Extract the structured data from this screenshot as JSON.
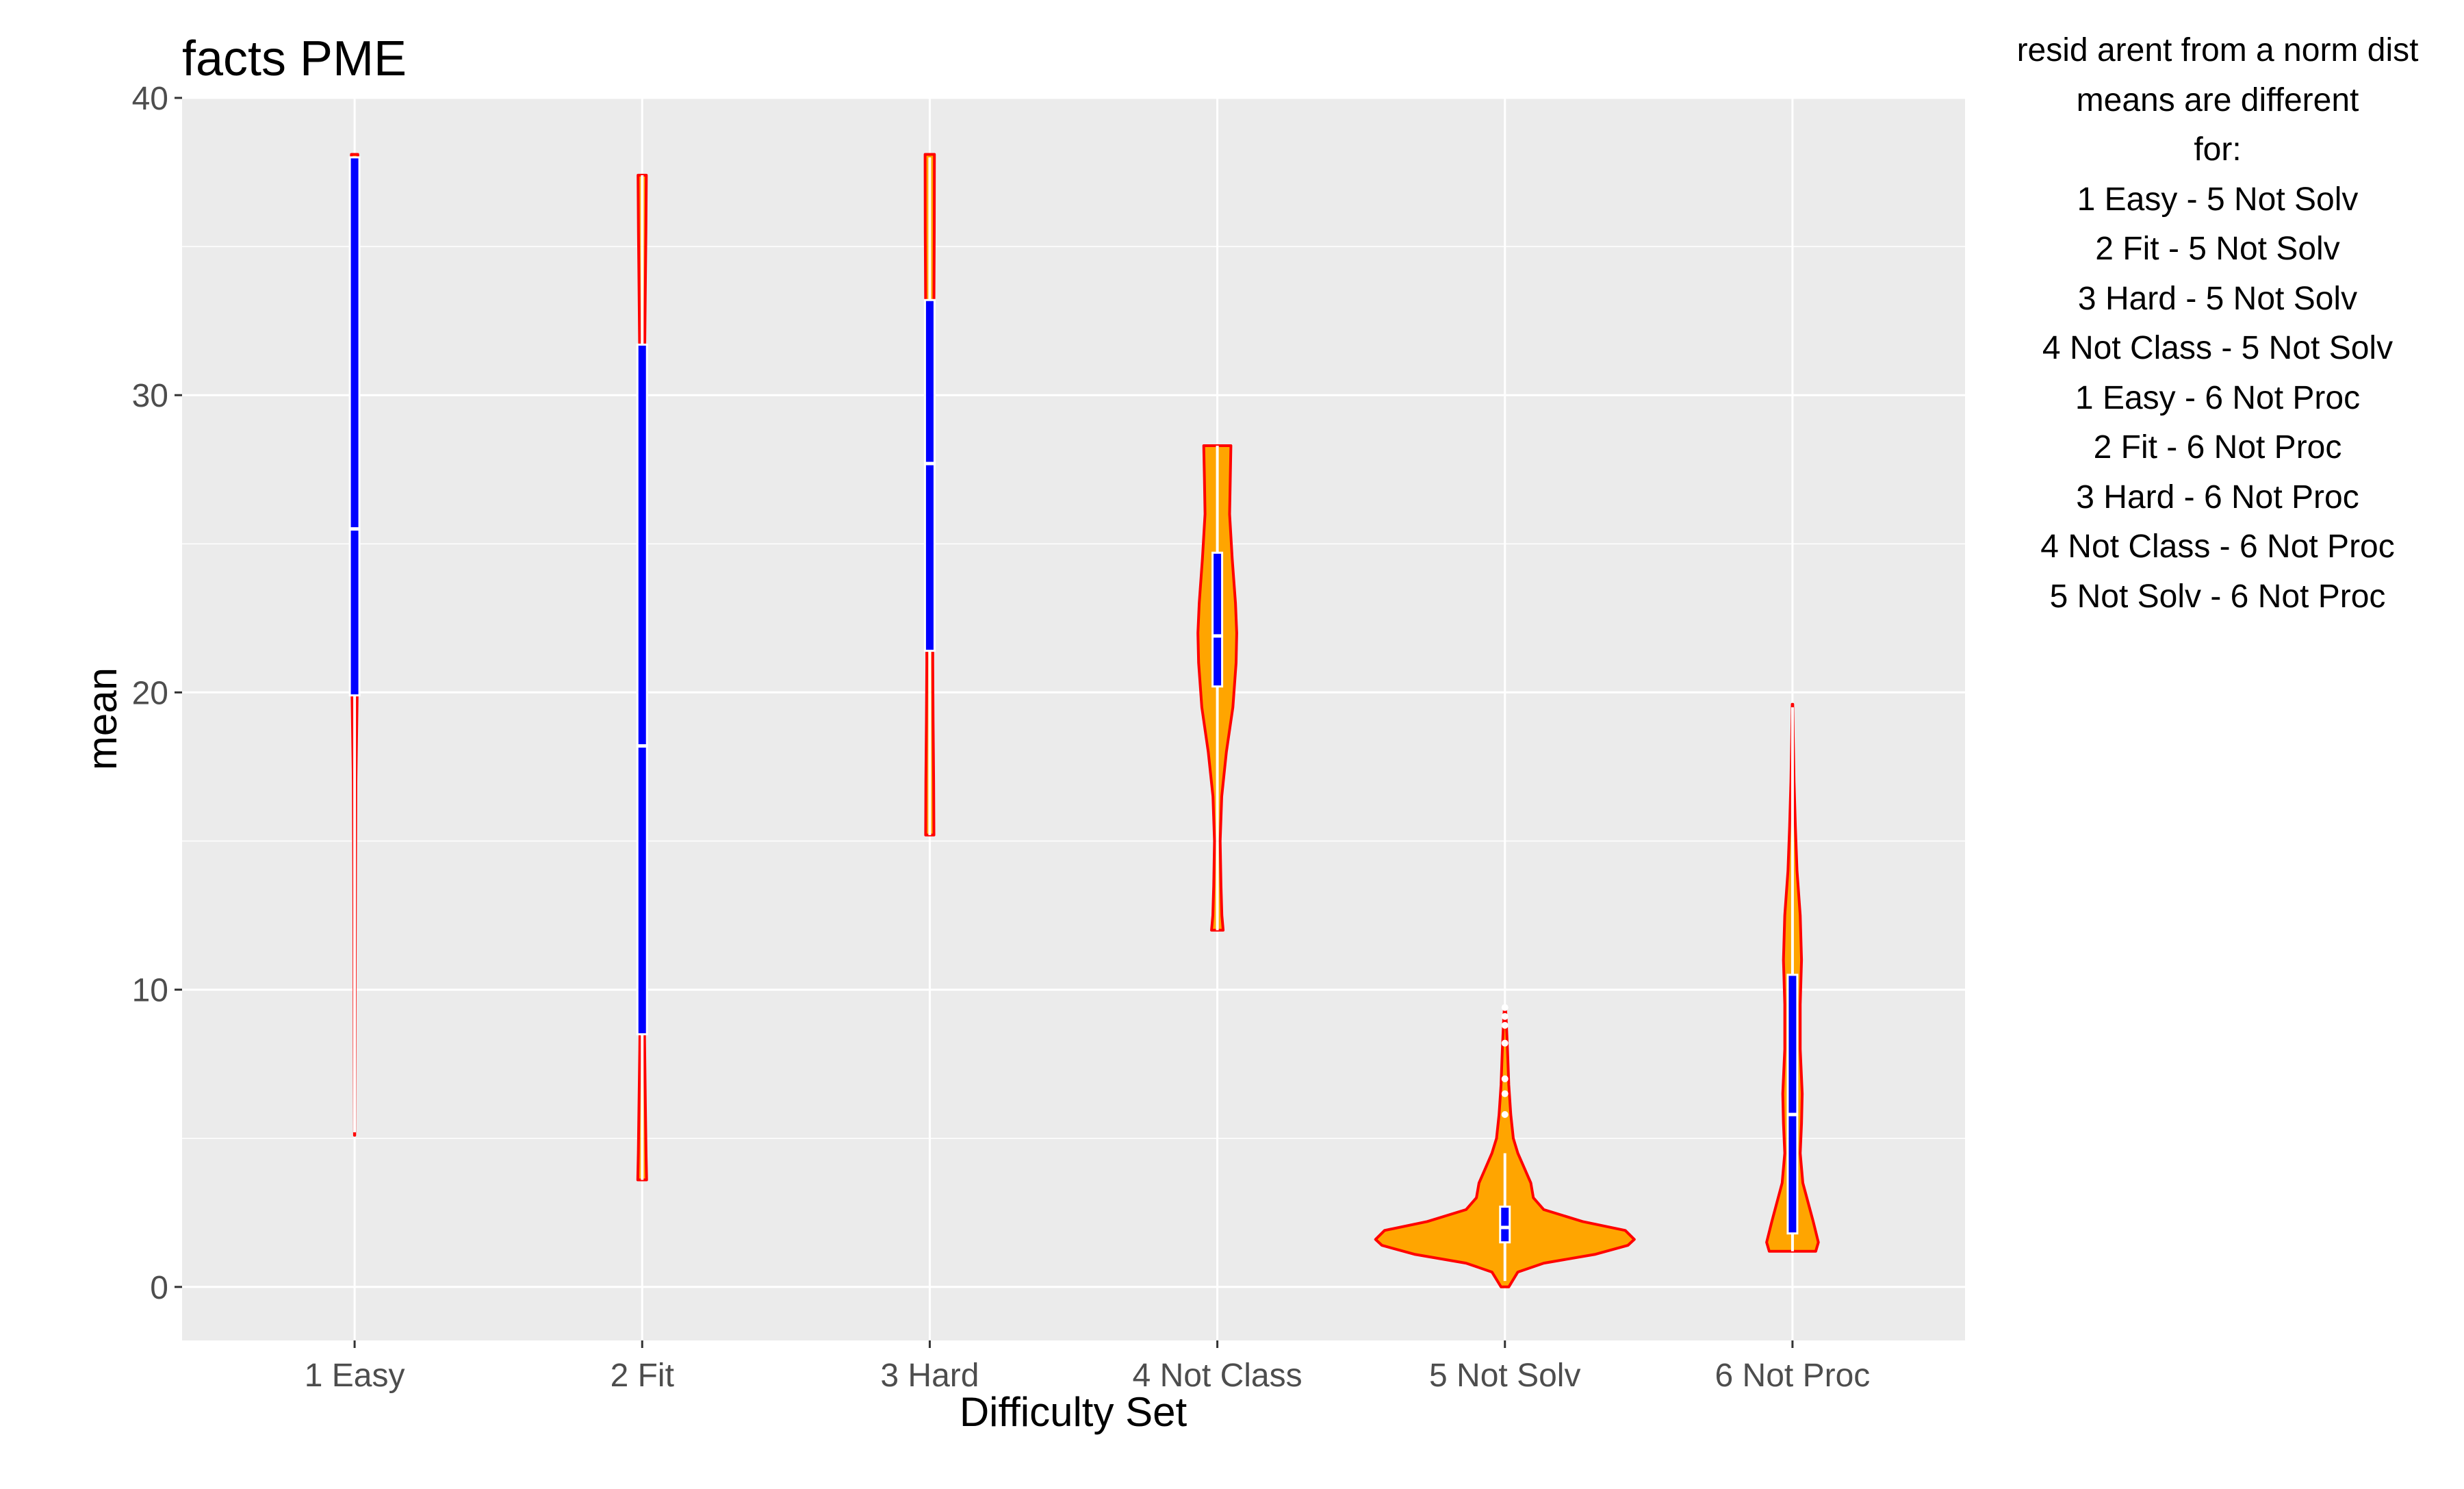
{
  "chart_data": {
    "type": "violin",
    "title": "facts PME",
    "xlabel": "Difficulty Set",
    "ylabel": "mean",
    "ylim": [
      -1.8,
      40
    ],
    "y_ticks": [
      0,
      10,
      20,
      30,
      40
    ],
    "grid": true,
    "colors": {
      "panel": "#EBEBEB",
      "grid": "#FFFFFF",
      "violin_fill": "#FFA500",
      "violin_outline": "#FF0000",
      "box_fill": "#0000FF",
      "box_outline": "#FFFFFF",
      "axis_text": "#4D4D4D"
    },
    "categories": [
      "1 Easy",
      "2 Fit",
      "3 Hard",
      "4 Not Class",
      "5 Not Solv",
      "6 Not Proc"
    ],
    "groups": [
      {
        "category": "1 Easy",
        "box": {
          "q1": 19.9,
          "median": 25.5,
          "q3": 38.0,
          "whisker_low": 5.2,
          "whisker_high": 38.0
        },
        "outliers": [],
        "density": [
          [
            5.1,
            0.001
          ],
          [
            8,
            0.003
          ],
          [
            11,
            0.005
          ],
          [
            14,
            0.007
          ],
          [
            17,
            0.01
          ],
          [
            20,
            0.02
          ],
          [
            25,
            0.025
          ],
          [
            30,
            0.025
          ],
          [
            35,
            0.025
          ],
          [
            38.1,
            0.025
          ]
        ]
      },
      {
        "category": "2 Fit",
        "box": {
          "q1": 8.5,
          "median": 18.2,
          "q3": 31.7,
          "whisker_low": 3.6,
          "whisker_high": 37.4
        },
        "outliers": [],
        "density": [
          [
            3.6,
            0.034
          ],
          [
            4.5,
            0.03
          ],
          [
            6,
            0.025
          ],
          [
            8,
            0.019
          ],
          [
            10,
            0.014
          ],
          [
            15,
            0.01
          ],
          [
            20,
            0.01
          ],
          [
            25,
            0.012
          ],
          [
            30,
            0.016
          ],
          [
            33,
            0.023
          ],
          [
            35.5,
            0.029
          ],
          [
            37.4,
            0.032
          ]
        ]
      },
      {
        "category": "3 Hard",
        "box": {
          "q1": 21.4,
          "median": 27.7,
          "q3": 33.2,
          "whisker_low": 15.2,
          "whisker_high": 38.0
        },
        "outliers": [],
        "density": [
          [
            15.2,
            0.032
          ],
          [
            17,
            0.03
          ],
          [
            19,
            0.026
          ],
          [
            21,
            0.023
          ],
          [
            24,
            0.024
          ],
          [
            27,
            0.026
          ],
          [
            30,
            0.029
          ],
          [
            33,
            0.032
          ],
          [
            35.5,
            0.035
          ],
          [
            38.1,
            0.036
          ]
        ]
      },
      {
        "category": "4 Not Class",
        "box": {
          "q1": 20.2,
          "median": 21.9,
          "q3": 24.7,
          "whisker_low": 12.0,
          "whisker_high": 28.3
        },
        "outliers": [],
        "density": [
          [
            12,
            0.045
          ],
          [
            12.5,
            0.035
          ],
          [
            13.5,
            0.028
          ],
          [
            15,
            0.022
          ],
          [
            16.5,
            0.034
          ],
          [
            18,
            0.07
          ],
          [
            19.5,
            0.12
          ],
          [
            21,
            0.145
          ],
          [
            22,
            0.15
          ],
          [
            23,
            0.14
          ],
          [
            24.5,
            0.115
          ],
          [
            26,
            0.095
          ],
          [
            27.2,
            0.1
          ],
          [
            28.3,
            0.105
          ]
        ]
      },
      {
        "category": "5 Not Solv",
        "box": {
          "q1": 1.5,
          "median": 2.0,
          "q3": 2.7,
          "whisker_low": 0.2,
          "whisker_high": 4.5
        },
        "outliers": [
          5.8,
          6.5,
          7.0,
          8.2,
          8.8,
          9.1,
          9.4
        ],
        "density": [
          [
            0.0,
            0.03
          ],
          [
            0.5,
            0.1
          ],
          [
            0.8,
            0.3
          ],
          [
            1.1,
            0.7
          ],
          [
            1.4,
            0.95
          ],
          [
            1.6,
            1.0
          ],
          [
            1.9,
            0.93
          ],
          [
            2.2,
            0.6
          ],
          [
            2.6,
            0.3
          ],
          [
            3.0,
            0.22
          ],
          [
            3.5,
            0.2
          ],
          [
            4.0,
            0.15
          ],
          [
            4.5,
            0.1
          ],
          [
            5.0,
            0.065
          ],
          [
            5.8,
            0.045
          ],
          [
            6.8,
            0.03
          ],
          [
            8.0,
            0.02
          ],
          [
            9.0,
            0.01
          ],
          [
            9.4,
            0.004
          ]
        ]
      },
      {
        "category": "6 Not Proc",
        "box": {
          "q1": 1.8,
          "median": 5.8,
          "q3": 10.5,
          "whisker_low": 1.2,
          "whisker_high": 19.5
        },
        "outliers": [],
        "density": [
          [
            1.2,
            0.18
          ],
          [
            1.5,
            0.2
          ],
          [
            2.2,
            0.16
          ],
          [
            3.5,
            0.08
          ],
          [
            4.5,
            0.06
          ],
          [
            5.5,
            0.07
          ],
          [
            6.5,
            0.075
          ],
          [
            8,
            0.06
          ],
          [
            9.5,
            0.06
          ],
          [
            11,
            0.07
          ],
          [
            12.5,
            0.06
          ],
          [
            14,
            0.035
          ],
          [
            15.5,
            0.022
          ],
          [
            17,
            0.012
          ],
          [
            18.5,
            0.006
          ],
          [
            19.6,
            0.002
          ]
        ]
      }
    ],
    "annotation_lines": [
      "resid arent from a norm dist",
      "means are different",
      "for:",
      "1 Easy - 5 Not Solv",
      "2 Fit - 5 Not Solv",
      "3 Hard - 5 Not Solv",
      "4 Not Class - 5 Not Solv",
      "1 Easy - 6 Not Proc",
      "2 Fit - 6 Not Proc",
      "3 Hard - 6 Not Proc",
      "4 Not Class - 6 Not Proc",
      "5 Not Solv - 6 Not Proc"
    ]
  }
}
